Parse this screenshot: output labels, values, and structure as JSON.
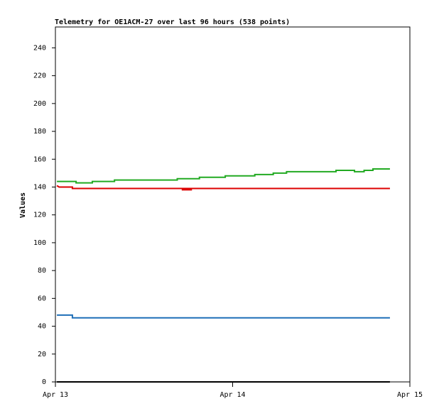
{
  "chart_data": {
    "type": "line",
    "title": "Telemetry for OE1ACM-27 over last 96 hours (538 points)",
    "y_label": "Values",
    "xlim": [
      0,
      48
    ],
    "ylim": [
      0,
      255
    ],
    "xticks": [
      {
        "value": 0,
        "label": "Apr 13"
      },
      {
        "value": 24,
        "label": "Apr 14"
      },
      {
        "value": 48,
        "label": "Apr 15"
      }
    ],
    "yticks": [
      0,
      20,
      40,
      60,
      80,
      100,
      120,
      140,
      160,
      180,
      200,
      220,
      240
    ],
    "series": [
      {
        "color": "#22aa22",
        "x": [
          0.2,
          2.8,
          2.8,
          5,
          5,
          8,
          8,
          16.5,
          16.5,
          19.5,
          19.5,
          23,
          23,
          27,
          27,
          29.5,
          29.5,
          31.3,
          31.3,
          38,
          38,
          40.5,
          40.5,
          41.8,
          41.8,
          43,
          43,
          45.3
        ],
        "values": [
          144,
          144,
          143,
          143,
          144,
          144,
          145,
          145,
          146,
          146,
          147,
          147,
          148,
          148,
          149,
          149,
          150,
          150,
          151,
          151,
          152,
          152,
          151,
          151,
          152,
          152,
          153,
          153
        ]
      },
      {
        "color": "#dd0000",
        "x": [
          0.2,
          0.5,
          2.3,
          2.3,
          17.2,
          17.2,
          18.4,
          18.4,
          17.2,
          18.6,
          18.6,
          45.3
        ],
        "values": [
          141,
          140,
          140,
          139,
          139,
          138,
          138,
          139,
          139,
          139,
          139,
          139
        ]
      },
      {
        "color": "#1f6fb8",
        "x": [
          0.2,
          2.3,
          2.3,
          45.3
        ],
        "values": [
          48,
          48,
          46,
          46
        ]
      },
      {
        "color": "#000000",
        "x": [
          0.2,
          45.3
        ],
        "values": [
          0,
          0
        ]
      }
    ]
  }
}
